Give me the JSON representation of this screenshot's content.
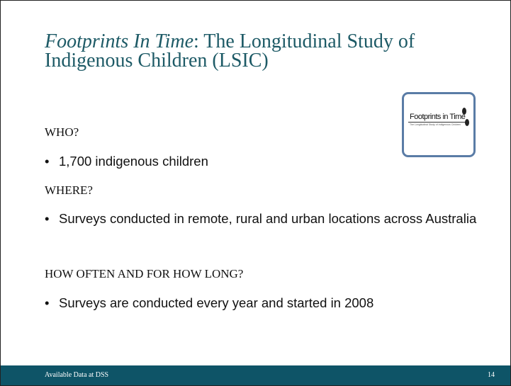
{
  "title": {
    "italic": "Footprints In Time",
    "rest": ": The Longitudinal Study of Indigenous Children (LSIC)"
  },
  "logo": {
    "title": "Footprints in Time",
    "subtitle": "The Longitudinal Study of Indigenous Children"
  },
  "sections": [
    {
      "heading": "WHO?",
      "bullets": [
        "1,700 indigenous children"
      ]
    },
    {
      "heading": "WHERE?",
      "bullets": [
        "Surveys conducted in remote, rural and urban locations across Australia"
      ]
    },
    {
      "heading": "HOW OFTEN AND FOR HOW LONG?",
      "bullets": [
        "Surveys are conducted every year and started in 2008"
      ]
    }
  ],
  "footer": {
    "left": "Available Data at DSS",
    "page": "14"
  }
}
